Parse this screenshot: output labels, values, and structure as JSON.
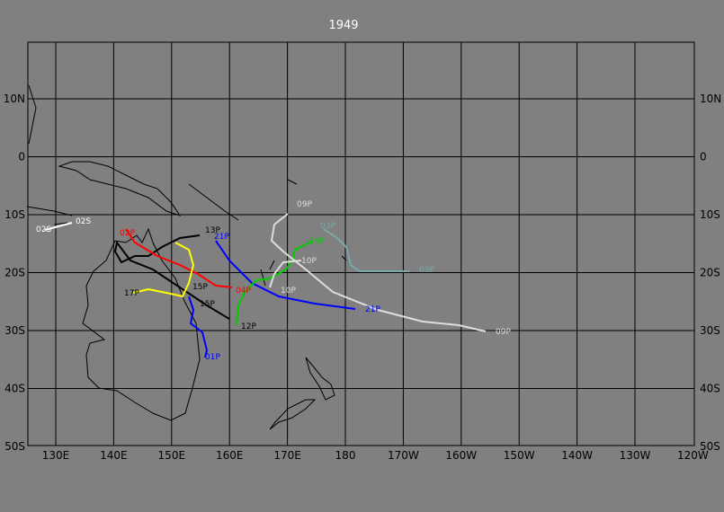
{
  "title": "1949",
  "lon_labels": [
    "130E",
    "140E",
    "150E",
    "160E",
    "170E",
    "180",
    "170W",
    "160W",
    "150W",
    "140W",
    "130W",
    "120W"
  ],
  "lat_labels": [
    "10N",
    "0",
    "10S",
    "20S",
    "30S",
    "40S",
    "50S"
  ],
  "storm_labels": [
    "02S",
    "02S",
    "13P",
    "21P",
    "02P",
    "17P",
    "15P",
    "15P",
    "01P",
    "04P",
    "10P",
    "10P",
    "19P",
    "09P",
    "03P",
    "03P",
    "21P",
    "09P",
    "12P"
  ]
}
